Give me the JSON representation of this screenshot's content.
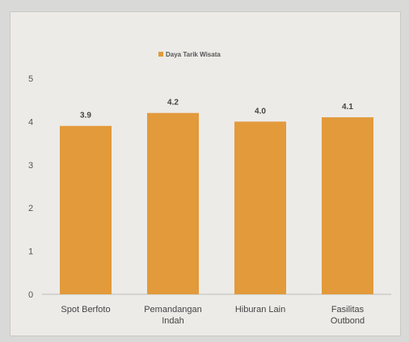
{
  "chart_data": {
    "type": "bar",
    "title": "",
    "xlabel": "",
    "ylabel": "",
    "categories": [
      "Spot Berfoto",
      "Pemandangan Indah",
      "Hiburan Lain",
      "Fasilitas Outbond"
    ],
    "series": [
      {
        "name": "Daya Tarik Wisata",
        "values": [
          3.9,
          4.2,
          4.0,
          4.1
        ],
        "color": "#e29a3b"
      }
    ],
    "data_labels": [
      "3.9",
      "4.2",
      "4.0",
      "4.1"
    ],
    "ylim": [
      0,
      5
    ],
    "yticks": [
      0,
      1,
      2,
      3,
      4,
      5
    ],
    "grid": false,
    "legend": "top-center"
  }
}
